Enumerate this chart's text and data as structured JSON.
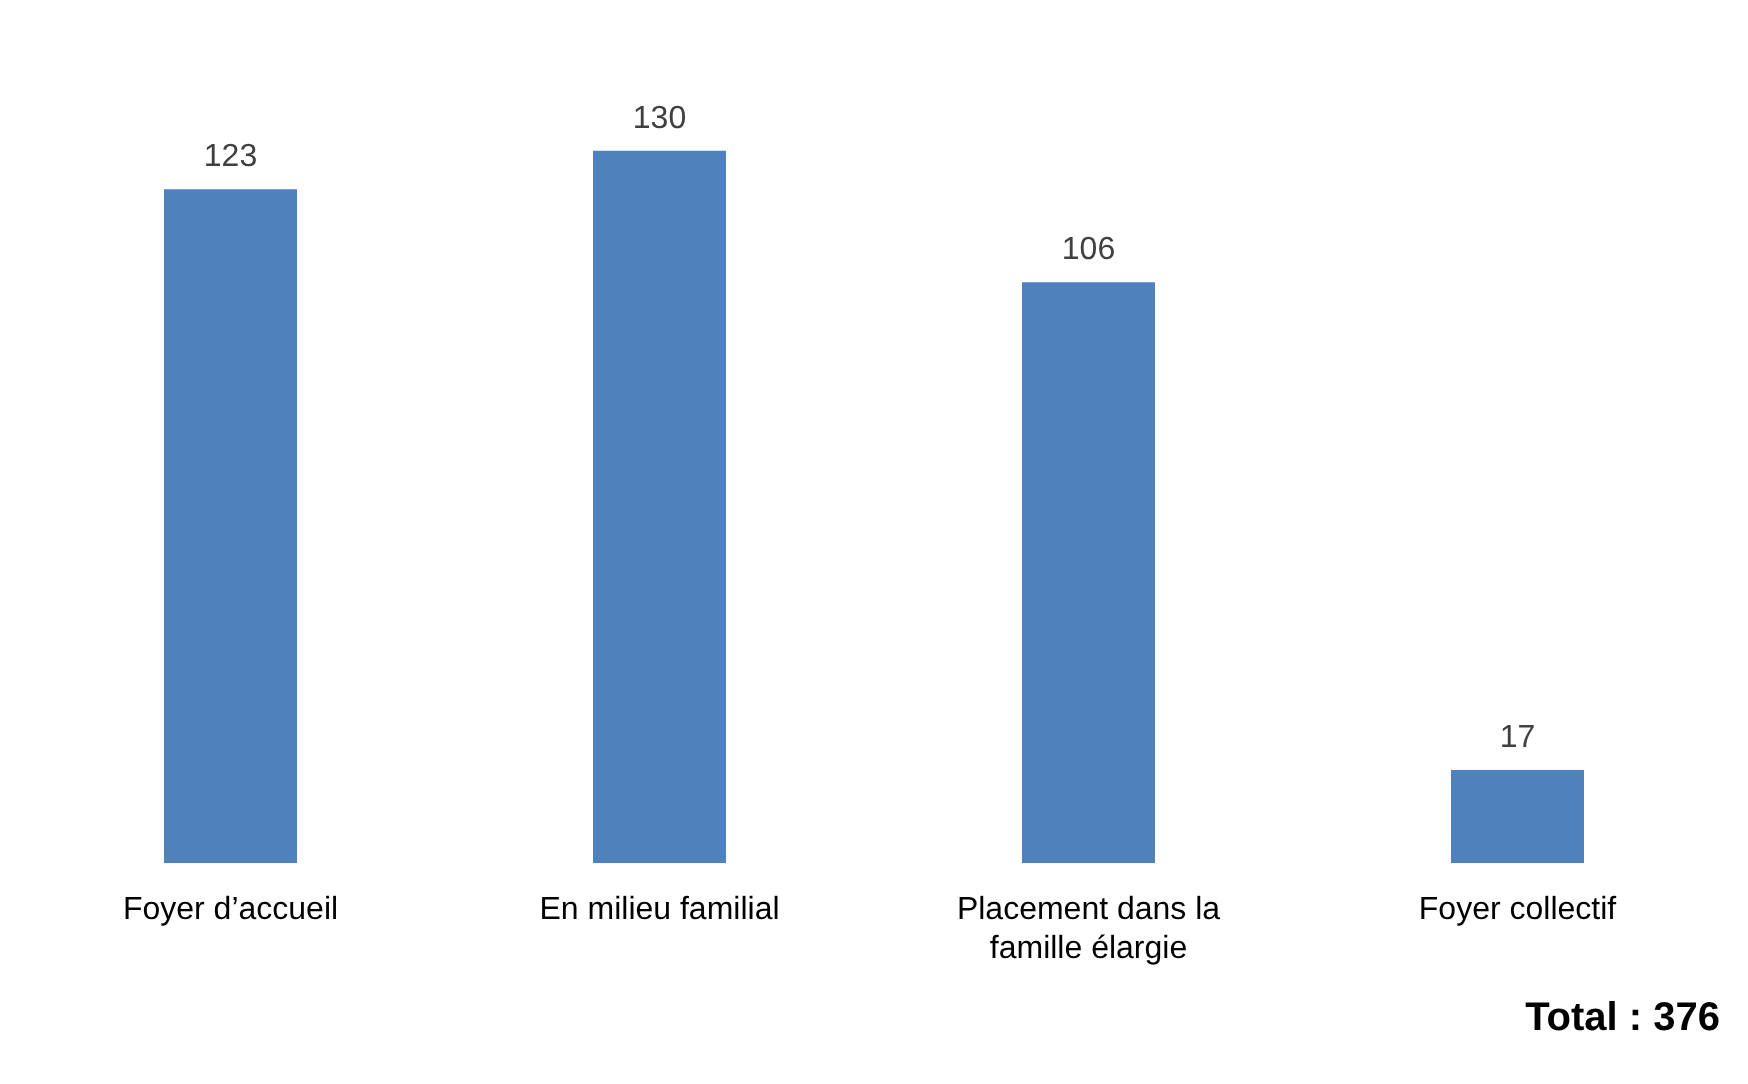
{
  "chart_data": {
    "type": "bar",
    "categories": [
      "Foyer d’accueil",
      "En milieu familial",
      "Placement dans la famille élargie",
      "Foyer collectif"
    ],
    "values": [
      123,
      130,
      106,
      17
    ],
    "color": "#4f81bd",
    "data_labels": true,
    "grid": false,
    "legend": false,
    "tick_labels": "x",
    "annotations": [
      "Total : 376"
    ]
  }
}
